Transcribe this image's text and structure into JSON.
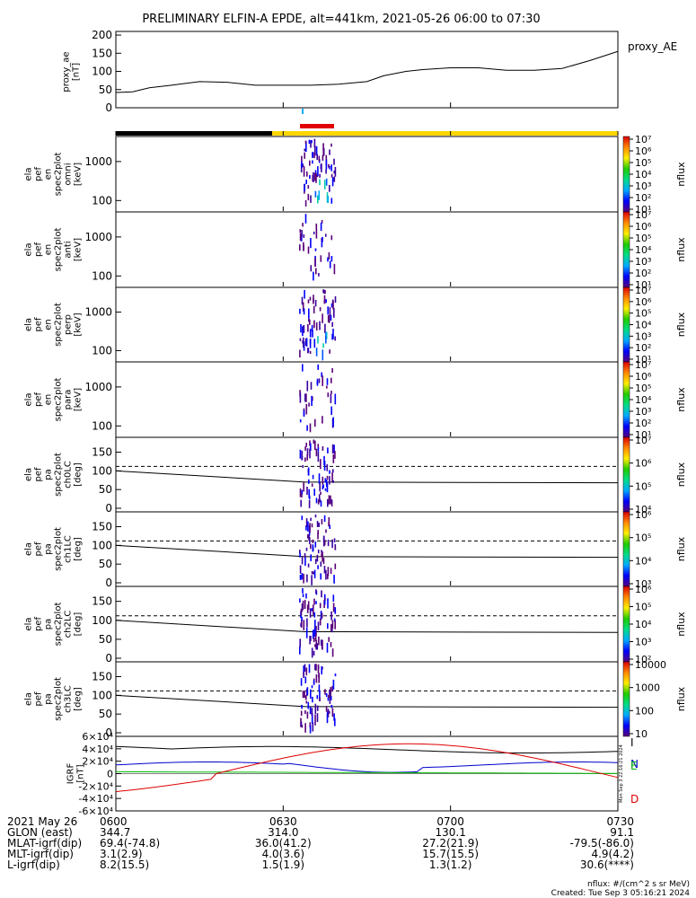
{
  "title": "PRELIMINARY ELFIN-A EPDE, alt=441km, 2021-05-26 06:00 to 07:30",
  "colors": {
    "axis": "#000000",
    "ae_line": "#000000",
    "orbit_night": "#000000",
    "orbit_day": "#ffd700",
    "science_zone": "#e00000",
    "brushtick": "#00aaff",
    "igrf_I": "#000000",
    "igrf_N": "#0000cc",
    "igrf_E": "#00bb00",
    "igrf_D": "#dd0000"
  },
  "chart_data": [
    {
      "type": "line",
      "panel": "proxy_ae",
      "ylabel": "proxy_ae [nT]",
      "right_label": "proxy_AE",
      "ylim": [
        0,
        210
      ],
      "yticks": [
        "0",
        "50",
        "100",
        "150",
        "200"
      ],
      "x_minutes": [
        0,
        3,
        6,
        10,
        15,
        20,
        25,
        30,
        35,
        40,
        45,
        48,
        52,
        55,
        60,
        65,
        70,
        75,
        80,
        85,
        90
      ],
      "y": [
        42,
        44,
        55,
        62,
        72,
        70,
        62,
        62,
        62,
        65,
        72,
        88,
        100,
        105,
        110,
        110,
        103,
        103,
        108,
        130,
        155
      ]
    },
    {
      "type": "heatmap",
      "panel": "omni",
      "ylabel": "ela pef en spec2plot omni [keV]",
      "yticks": [
        "100",
        "1000"
      ],
      "colorbar": {
        "label": "nflux",
        "ticks": [
          "10^1",
          "10^2",
          "10^3",
          "10^4",
          "10^5",
          "10^6",
          "10^7"
        ]
      }
    },
    {
      "type": "heatmap",
      "panel": "anti",
      "ylabel": "ela pef en spec2plot anti [keV]",
      "yticks": [
        "100",
        "1000"
      ],
      "colorbar": {
        "label": "nflux",
        "ticks": [
          "10^1",
          "10^2",
          "10^3",
          "10^4",
          "10^5",
          "10^6",
          "10^7"
        ]
      }
    },
    {
      "type": "heatmap",
      "panel": "perp",
      "ylabel": "ela pef en spec2plot perp [keV]",
      "yticks": [
        "100",
        "1000"
      ],
      "colorbar": {
        "label": "nflux",
        "ticks": [
          "10^1",
          "10^2",
          "10^3",
          "10^4",
          "10^5",
          "10^6",
          "10^7"
        ]
      }
    },
    {
      "type": "heatmap",
      "panel": "para",
      "ylabel": "ela pef en spec2plot para [keV]",
      "yticks": [
        "100",
        "1000"
      ],
      "colorbar": {
        "label": "nflux",
        "ticks": [
          "10^1",
          "10^2",
          "10^3",
          "10^4",
          "10^5",
          "10^6",
          "10^7"
        ]
      }
    },
    {
      "type": "heatmap",
      "panel": "ch0LC",
      "ylabel": "ela pef pa spec2plot ch0LC [deg]",
      "yticks": [
        "0",
        "50",
        "100",
        "150"
      ],
      "colorbar": {
        "label": "nflux",
        "ticks": [
          "10^4",
          "10^5",
          "10^6",
          "10^7"
        ]
      }
    },
    {
      "type": "heatmap",
      "panel": "ch1LC",
      "ylabel": "ela pef pa spec2plot ch1LC [deg]",
      "yticks": [
        "0",
        "50",
        "100",
        "150"
      ],
      "colorbar": {
        "label": "nflux",
        "ticks": [
          "10^3",
          "10^4",
          "10^5",
          "10^6"
        ]
      }
    },
    {
      "type": "heatmap",
      "panel": "ch2LC",
      "ylabel": "ela pef pa spec2plot ch2LC [deg]",
      "yticks": [
        "0",
        "50",
        "100",
        "150"
      ],
      "colorbar": {
        "label": "nflux",
        "ticks": [
          "10^2",
          "10^3",
          "10^4",
          "10^5",
          "10^6"
        ]
      }
    },
    {
      "type": "heatmap",
      "panel": "ch3LC",
      "ylabel": "ela pef pa spec2plot ch3LC [deg]",
      "yticks": [
        "0",
        "50",
        "100",
        "150"
      ],
      "colorbar": {
        "label": "nflux",
        "ticks": [
          "10",
          "100",
          "1000",
          "10000"
        ]
      }
    },
    {
      "type": "line",
      "panel": "igrf",
      "ylabel": "IGRF [nT]",
      "ylim": [
        -60000,
        60000
      ],
      "yticks": [
        "-6×10⁴",
        "-4×10⁴",
        "-2×10⁴",
        "0",
        "2×10⁴",
        "4×10⁴",
        "6×10⁴"
      ],
      "series_labels": [
        "I",
        "N",
        "E",
        "D"
      ],
      "side_text": "Mon Sep 3 22:16:21 2024"
    }
  ],
  "xaxis": {
    "row_labels": [
      "2021 May 26",
      "GLON (east)",
      "MLAT-igrf(dip)",
      "MLT-igrf(dip)",
      "L-igrf(dip)"
    ],
    "ticks": [
      {
        "minute": 0,
        "values": [
          "0600",
          "344.7",
          "69.4(-74.8)",
          "3.1(2.9)",
          "8.2(15.5)"
        ]
      },
      {
        "minute": 30,
        "values": [
          "0630",
          "314.0",
          "36.0(41.2)",
          "4.0(3.6)",
          "1.5(1.9)"
        ]
      },
      {
        "minute": 60,
        "values": [
          "0700",
          "130.1",
          "27.2(21.9)",
          "15.7(15.5)",
          "1.3(1.2)"
        ]
      },
      {
        "minute": 90,
        "values": [
          "0730",
          "91.1",
          "-79.5(-86.0)",
          "4.9(4.2)",
          "30.6(****)"
        ]
      }
    ]
  },
  "footer": {
    "units": "nflux: #/(cm^2 s sr MeV)",
    "created": "Created: Tue Sep  3 05:16:21 2024"
  }
}
